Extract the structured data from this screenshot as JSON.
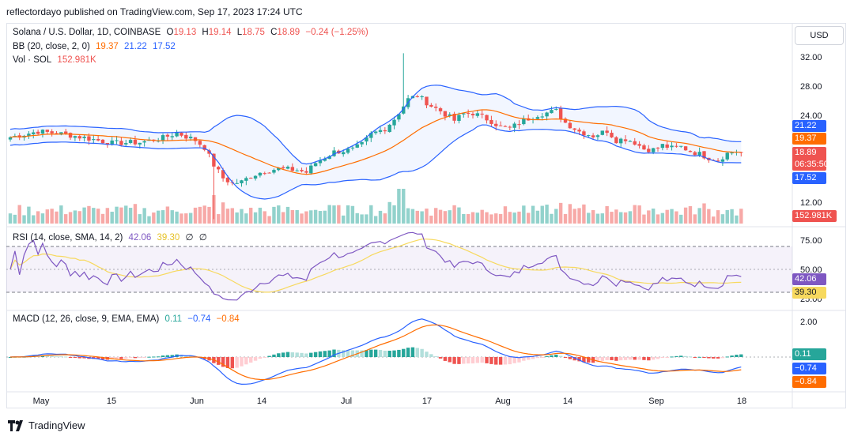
{
  "header": {
    "text": "reflectordayo published on TradingView.com, Sep 17, 2023 17:24 UTC"
  },
  "toolbar": {
    "currency": "USD"
  },
  "legend": {
    "symbol": "Solana / U.S. Dollar, 1D, COINBASE",
    "o_label": "O",
    "o": "19.13",
    "h_label": "H",
    "h": "19.14",
    "l_label": "L",
    "l": "18.75",
    "c_label": "C",
    "c": "18.89",
    "change": "−0.24 (−1.25%)",
    "bb_label": "BB (20, close, 2, 0)",
    "bb_basis": "19.37",
    "bb_upper": "21.22",
    "bb_lower": "17.52",
    "vol_label": "Vol · SOL",
    "vol": "152.981K",
    "rsi_label": "RSI (14, close, SMA, 14, 2)",
    "rsi": "42.06",
    "rsi_ma": "39.30",
    "rsi_x1": "∅",
    "rsi_x2": "∅",
    "macd_label": "MACD (12, 26, close, 9, EMA, EMA)",
    "macd_hist": "0.11",
    "macd": "−0.74",
    "macd_signal": "−0.84"
  },
  "price_axis": {
    "ticks": [
      "32.00",
      "28.00",
      "24.00",
      "12.00"
    ]
  },
  "rsi_axis": {
    "ticks": [
      "75.00",
      "50.00",
      "25.00"
    ]
  },
  "macd_axis": {
    "ticks": [
      "2.00"
    ]
  },
  "time_axis": {
    "labels": [
      "May",
      "15",
      "Jun",
      "14",
      "Jul",
      "17",
      "Aug",
      "14",
      "Sep",
      "18"
    ]
  },
  "price_tags": {
    "upper": "21.22",
    "basis": "19.37",
    "last": "18.89",
    "countdown": "06:35:50",
    "lower": "17.52",
    "volume": "152.981K"
  },
  "rsi_tags": {
    "rsi": "42.06",
    "ma": "39.30"
  },
  "macd_tags": {
    "hist": "0.11",
    "macd": "−0.74",
    "signal": "−0.84"
  },
  "colors": {
    "up": "#26a69a",
    "down": "#ef5350",
    "bb_band": "#2962ff",
    "bb_basis": "#ff6d00",
    "rsi": "#7e57c2",
    "rsi_ma": "#f7d95e",
    "macd": "#2962ff",
    "signal": "#ff6d00"
  },
  "footer": {
    "brand": "TradingView"
  },
  "chart_data": {
    "type": "candlestick",
    "title": "Solana / U.S. Dollar, 1D, COINBASE",
    "x_ticks": [
      "May",
      "15",
      "Jun",
      "14",
      "Jul",
      "17",
      "Aug",
      "14",
      "Sep",
      "18"
    ],
    "ylim": [
      10,
      33
    ],
    "anchors": [
      [
        0,
        21
      ],
      [
        6,
        21.8
      ],
      [
        12,
        21.4
      ],
      [
        18,
        20.7
      ],
      [
        22,
        20.2
      ],
      [
        28,
        20.3
      ],
      [
        33,
        20.9
      ],
      [
        36,
        21.6
      ],
      [
        40,
        20.6
      ],
      [
        42,
        19.6
      ],
      [
        44,
        17.2
      ],
      [
        46,
        15.4
      ],
      [
        48,
        14.7
      ],
      [
        50,
        14.9
      ],
      [
        52,
        15.7
      ],
      [
        55,
        16.4
      ],
      [
        58,
        16.7
      ],
      [
        62,
        16.5
      ],
      [
        64,
        16.2
      ],
      [
        66,
        17.5
      ],
      [
        70,
        19.0
      ],
      [
        74,
        19.3
      ],
      [
        76,
        20.0
      ],
      [
        78,
        21.4
      ],
      [
        81,
        22.2
      ],
      [
        83,
        23.5
      ],
      [
        86,
        26.2
      ],
      [
        88,
        26.7
      ],
      [
        91,
        25.3
      ],
      [
        93,
        24.6
      ],
      [
        96,
        23.3
      ],
      [
        98,
        24.2
      ],
      [
        100,
        24.3
      ],
      [
        102,
        23.8
      ],
      [
        104,
        23.2
      ],
      [
        106,
        22.4
      ],
      [
        108,
        22.2
      ],
      [
        111,
        23.3
      ],
      [
        114,
        24.1
      ],
      [
        118,
        24.6
      ],
      [
        120,
        23.0
      ],
      [
        123,
        21.8
      ],
      [
        126,
        21.2
      ],
      [
        129,
        21.9
      ],
      [
        131,
        20.6
      ],
      [
        133,
        20.8
      ],
      [
        135,
        20.3
      ],
      [
        137,
        19.4
      ],
      [
        139,
        19.3
      ],
      [
        141,
        19.9
      ],
      [
        143,
        19.5
      ],
      [
        145,
        19.7
      ],
      [
        147,
        19.1
      ],
      [
        149,
        18.7
      ],
      [
        151,
        18.2
      ],
      [
        153,
        17.9
      ],
      [
        155,
        18.8
      ],
      [
        157,
        19.1
      ],
      [
        158,
        18.89
      ]
    ],
    "spikes": [
      [
        44,
        9.8
      ],
      [
        85,
        32.5
      ]
    ],
    "bb_upper_last": 21.22,
    "bb_basis_last": 19.37,
    "bb_lower_last": 17.52,
    "volume_last": "152.981K",
    "rsi_last": 42.06,
    "rsi_ma_last": 39.3,
    "macd_last": -0.74,
    "macd_signal_last": -0.84,
    "macd_hist_last": 0.11
  }
}
